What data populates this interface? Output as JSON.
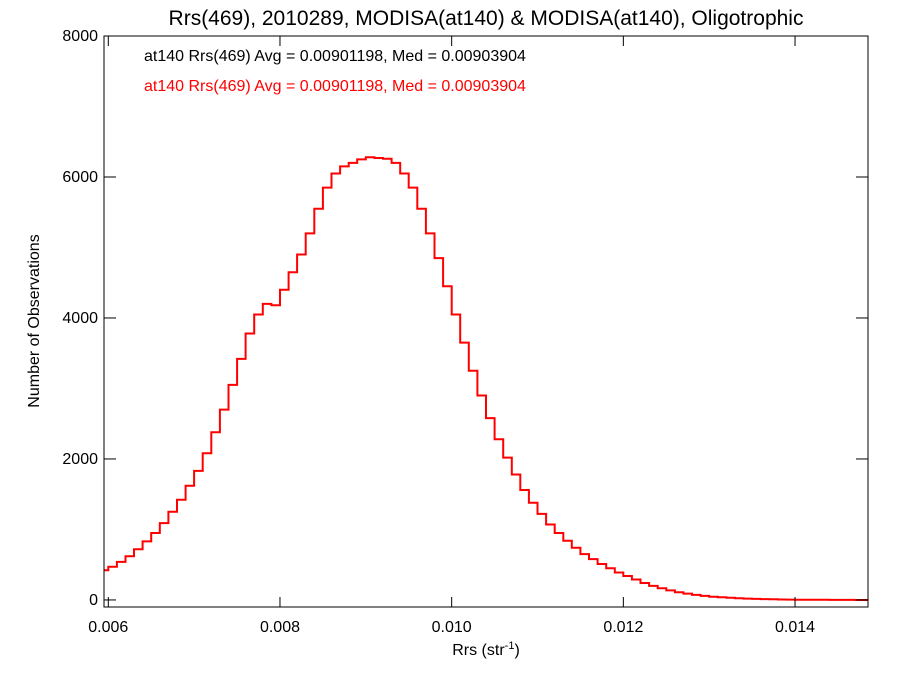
{
  "chart_data": {
    "type": "line",
    "step": true,
    "title": "Rrs(469), 2010289, MODISA(at140) & MODISA(at140), Oligotrophic",
    "xlabel": "Rrs (str",
    "xlabel_sup": "-1",
    "xlabel_end": ")",
    "ylabel": "Number of Observations",
    "xlim": [
      0.00595,
      0.01485
    ],
    "ylim": [
      -100,
      8000
    ],
    "x_ticks": [
      0.006,
      0.008,
      0.01,
      0.012,
      0.014
    ],
    "x_tick_labels": [
      "0.006",
      "0.008",
      "0.010",
      "0.012",
      "0.014"
    ],
    "y_ticks": [
      0,
      2000,
      4000,
      6000,
      8000
    ],
    "y_tick_labels": [
      "0",
      "2000",
      "4000",
      "6000",
      "8000"
    ],
    "annotations": [
      {
        "text": "at140 Rrs(469) Avg = 0.00901198, Med = 0.00903904",
        "color": "#000000"
      },
      {
        "text": "at140 Rrs(469) Avg = 0.00901198, Med = 0.00903904",
        "color": "#ff0000"
      }
    ],
    "series": [
      {
        "color": "#ff0000",
        "x": [
          0.00595,
          0.006,
          0.0061,
          0.0062,
          0.0063,
          0.0064,
          0.0065,
          0.0066,
          0.0067,
          0.0068,
          0.0069,
          0.007,
          0.0071,
          0.0072,
          0.0073,
          0.0074,
          0.0075,
          0.0076,
          0.0077,
          0.0078,
          0.0079,
          0.008,
          0.0081,
          0.0082,
          0.0083,
          0.0084,
          0.0085,
          0.0086,
          0.0087,
          0.0088,
          0.0089,
          0.009,
          0.0091,
          0.0092,
          0.0093,
          0.0094,
          0.0095,
          0.0096,
          0.0097,
          0.0098,
          0.0099,
          0.01,
          0.0101,
          0.0102,
          0.0103,
          0.0104,
          0.0105,
          0.0106,
          0.0107,
          0.0108,
          0.0109,
          0.011,
          0.0111,
          0.0112,
          0.0113,
          0.0114,
          0.0115,
          0.0116,
          0.0117,
          0.0118,
          0.0119,
          0.012,
          0.0121,
          0.0122,
          0.0123,
          0.0124,
          0.0125,
          0.0126,
          0.0127,
          0.0128,
          0.0129,
          0.013,
          0.0131,
          0.0132,
          0.0133,
          0.0134,
          0.0135,
          0.0136,
          0.0137,
          0.0138,
          0.0139,
          0.014,
          0.0141,
          0.0142,
          0.0143,
          0.0144,
          0.0145,
          0.0146,
          0.0147,
          0.0148
        ],
        "y": [
          420,
          470,
          540,
          620,
          720,
          830,
          950,
          1090,
          1250,
          1420,
          1620,
          1830,
          2080,
          2380,
          2700,
          3050,
          3420,
          3780,
          4050,
          4200,
          4180,
          4400,
          4650,
          4900,
          5200,
          5550,
          5850,
          6050,
          6150,
          6200,
          6250,
          6280,
          6270,
          6260,
          6200,
          6050,
          5850,
          5550,
          5200,
          4850,
          4450,
          4050,
          3650,
          3250,
          2900,
          2580,
          2280,
          2020,
          1780,
          1560,
          1380,
          1220,
          1070,
          950,
          840,
          740,
          650,
          580,
          510,
          450,
          390,
          340,
          290,
          240,
          200,
          165,
          135,
          110,
          90,
          72,
          58,
          46,
          37,
          30,
          24,
          19,
          15,
          12,
          9,
          7,
          5,
          4,
          3,
          2,
          2,
          1,
          1,
          1,
          0,
          0
        ]
      }
    ]
  }
}
